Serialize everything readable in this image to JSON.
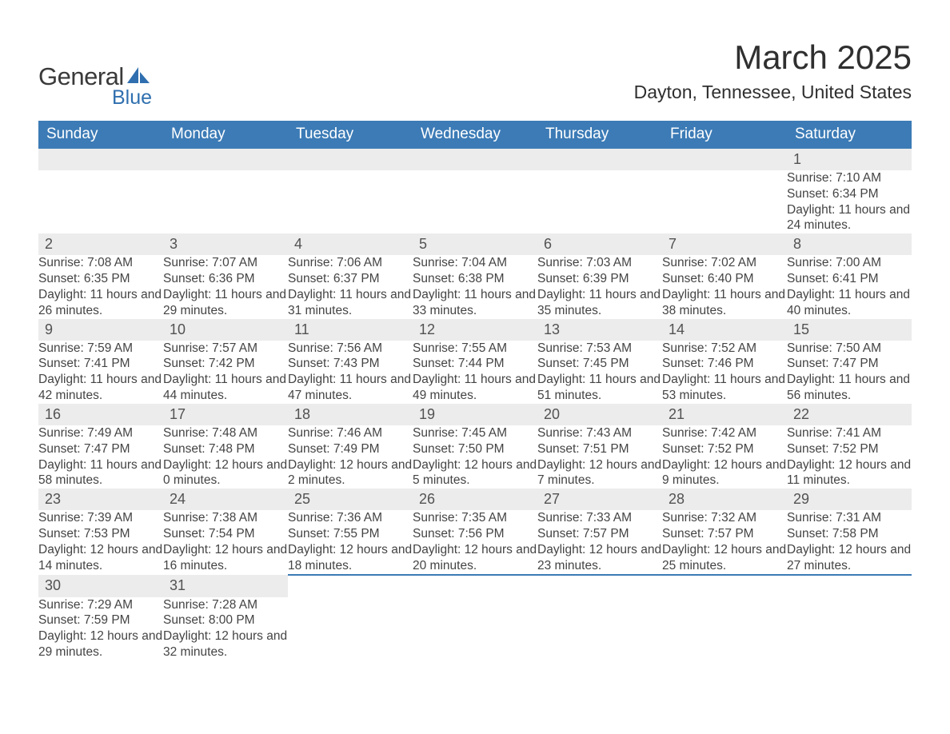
{
  "logo": {
    "text1": "General",
    "text2": "Blue",
    "icon_color": "#2f6faf"
  },
  "title": "March 2025",
  "location": "Dayton, Tennessee, United States",
  "colors": {
    "header_bg": "#3c7bb6",
    "header_text": "#ffffff",
    "daynum_bg": "#ececec",
    "border_top": "#3c7bb6",
    "body_text": "#444444"
  },
  "weekdays": [
    "Sunday",
    "Monday",
    "Tuesday",
    "Wednesday",
    "Thursday",
    "Friday",
    "Saturday"
  ],
  "weeks": [
    [
      null,
      null,
      null,
      null,
      null,
      null,
      {
        "n": "1",
        "sr": "7:10 AM",
        "ss": "6:34 PM",
        "dh": "11",
        "dm": "24"
      }
    ],
    [
      {
        "n": "2",
        "sr": "7:08 AM",
        "ss": "6:35 PM",
        "dh": "11",
        "dm": "26"
      },
      {
        "n": "3",
        "sr": "7:07 AM",
        "ss": "6:36 PM",
        "dh": "11",
        "dm": "29"
      },
      {
        "n": "4",
        "sr": "7:06 AM",
        "ss": "6:37 PM",
        "dh": "11",
        "dm": "31"
      },
      {
        "n": "5",
        "sr": "7:04 AM",
        "ss": "6:38 PM",
        "dh": "11",
        "dm": "33"
      },
      {
        "n": "6",
        "sr": "7:03 AM",
        "ss": "6:39 PM",
        "dh": "11",
        "dm": "35"
      },
      {
        "n": "7",
        "sr": "7:02 AM",
        "ss": "6:40 PM",
        "dh": "11",
        "dm": "38"
      },
      {
        "n": "8",
        "sr": "7:00 AM",
        "ss": "6:41 PM",
        "dh": "11",
        "dm": "40"
      }
    ],
    [
      {
        "n": "9",
        "sr": "7:59 AM",
        "ss": "7:41 PM",
        "dh": "11",
        "dm": "42"
      },
      {
        "n": "10",
        "sr": "7:57 AM",
        "ss": "7:42 PM",
        "dh": "11",
        "dm": "44"
      },
      {
        "n": "11",
        "sr": "7:56 AM",
        "ss": "7:43 PM",
        "dh": "11",
        "dm": "47"
      },
      {
        "n": "12",
        "sr": "7:55 AM",
        "ss": "7:44 PM",
        "dh": "11",
        "dm": "49"
      },
      {
        "n": "13",
        "sr": "7:53 AM",
        "ss": "7:45 PM",
        "dh": "11",
        "dm": "51"
      },
      {
        "n": "14",
        "sr": "7:52 AM",
        "ss": "7:46 PM",
        "dh": "11",
        "dm": "53"
      },
      {
        "n": "15",
        "sr": "7:50 AM",
        "ss": "7:47 PM",
        "dh": "11",
        "dm": "56"
      }
    ],
    [
      {
        "n": "16",
        "sr": "7:49 AM",
        "ss": "7:47 PM",
        "dh": "11",
        "dm": "58"
      },
      {
        "n": "17",
        "sr": "7:48 AM",
        "ss": "7:48 PM",
        "dh": "12",
        "dm": "0"
      },
      {
        "n": "18",
        "sr": "7:46 AM",
        "ss": "7:49 PM",
        "dh": "12",
        "dm": "2"
      },
      {
        "n": "19",
        "sr": "7:45 AM",
        "ss": "7:50 PM",
        "dh": "12",
        "dm": "5"
      },
      {
        "n": "20",
        "sr": "7:43 AM",
        "ss": "7:51 PM",
        "dh": "12",
        "dm": "7"
      },
      {
        "n": "21",
        "sr": "7:42 AM",
        "ss": "7:52 PM",
        "dh": "12",
        "dm": "9"
      },
      {
        "n": "22",
        "sr": "7:41 AM",
        "ss": "7:52 PM",
        "dh": "12",
        "dm": "11"
      }
    ],
    [
      {
        "n": "23",
        "sr": "7:39 AM",
        "ss": "7:53 PM",
        "dh": "12",
        "dm": "14"
      },
      {
        "n": "24",
        "sr": "7:38 AM",
        "ss": "7:54 PM",
        "dh": "12",
        "dm": "16"
      },
      {
        "n": "25",
        "sr": "7:36 AM",
        "ss": "7:55 PM",
        "dh": "12",
        "dm": "18"
      },
      {
        "n": "26",
        "sr": "7:35 AM",
        "ss": "7:56 PM",
        "dh": "12",
        "dm": "20"
      },
      {
        "n": "27",
        "sr": "7:33 AM",
        "ss": "7:57 PM",
        "dh": "12",
        "dm": "23"
      },
      {
        "n": "28",
        "sr": "7:32 AM",
        "ss": "7:57 PM",
        "dh": "12",
        "dm": "25"
      },
      {
        "n": "29",
        "sr": "7:31 AM",
        "ss": "7:58 PM",
        "dh": "12",
        "dm": "27"
      }
    ],
    [
      {
        "n": "30",
        "sr": "7:29 AM",
        "ss": "7:59 PM",
        "dh": "12",
        "dm": "29"
      },
      {
        "n": "31",
        "sr": "7:28 AM",
        "ss": "8:00 PM",
        "dh": "12",
        "dm": "32"
      },
      null,
      null,
      null,
      null,
      null
    ]
  ],
  "labels": {
    "sunrise": "Sunrise:",
    "sunset": "Sunset:",
    "daylight": "Daylight:",
    "hours": "hours",
    "and": "and",
    "minutes": "minutes."
  }
}
